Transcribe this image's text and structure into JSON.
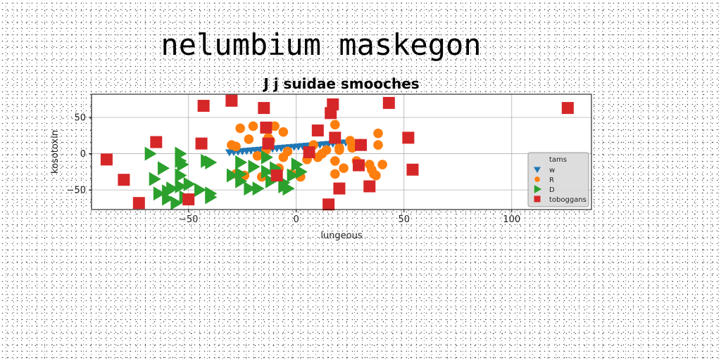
{
  "chart_data": {
    "type": "scatter",
    "suptitle": "nelumbium maskegon",
    "title": "J j suidae smooches",
    "xlabel": "lungeous",
    "ylabel": "kosotoxin",
    "xlim": [
      -95,
      137
    ],
    "ylim": [
      -77,
      82
    ],
    "xticks": [
      -50,
      0,
      50,
      100
    ],
    "yticks": [
      -50,
      0,
      50
    ],
    "grid": true,
    "legend": {
      "title": "tams",
      "placement": "lower-right"
    },
    "colors": {
      "w": "#1f77b4",
      "R": "#ff7f0e",
      "D": "#2ca02c",
      "toboggans": "#d62728"
    },
    "series": [
      {
        "name": "w",
        "marker": "triangle-down",
        "color": "#1f77b4",
        "x": [
          -31,
          -29,
          -27,
          -25,
          -23,
          -21,
          -19,
          -17,
          -15,
          -13,
          -11,
          -9,
          -7,
          -5,
          -3,
          -1,
          1,
          3,
          5,
          7,
          9,
          11,
          13,
          15,
          17,
          19,
          21,
          23
        ],
        "y": [
          2,
          2.5,
          3,
          3.5,
          4,
          4.5,
          5,
          5.5,
          6,
          6.5,
          7,
          7.5,
          8,
          8.5,
          9,
          9.5,
          10,
          10.5,
          11,
          11.5,
          12,
          12.5,
          13,
          13.5,
          14,
          14.5,
          15,
          15.5
        ]
      },
      {
        "name": "R",
        "marker": "circle",
        "color": "#ff7f0e",
        "x": [
          -26,
          -20,
          -22,
          -12,
          -10,
          -6,
          -6,
          -30,
          -28,
          -14,
          -9,
          -18,
          -4,
          8,
          10,
          12,
          18,
          20,
          22,
          25,
          26,
          28,
          30,
          35,
          37,
          38,
          38,
          40,
          36,
          34,
          18,
          16,
          -2,
          2,
          5,
          -13,
          20,
          -28,
          -24,
          -16,
          -8,
          14,
          18,
          26
        ],
        "y": [
          35,
          38,
          20,
          18,
          38,
          30,
          -5,
          12,
          10,
          5,
          -28,
          -3,
          3,
          12,
          -5,
          0,
          40,
          8,
          -20,
          18,
          8,
          -10,
          14,
          -22,
          -30,
          28,
          12,
          -15,
          -28,
          -15,
          -28,
          60,
          -28,
          -32,
          -8,
          22,
          5,
          -28,
          -30,
          -32,
          -20,
          5,
          -10,
          10
        ]
      },
      {
        "name": "D",
        "marker": "triangle-right",
        "color": "#2ca02c",
        "x": [
          -68,
          -54,
          -54,
          -54,
          -66,
          -53,
          -58,
          -45,
          -40,
          -40,
          -26,
          -26,
          -30,
          -14,
          -10,
          -22,
          -6,
          -4,
          0,
          -64,
          -60,
          -56,
          -52,
          -60,
          -54,
          -50,
          -40,
          -26,
          -18,
          -12,
          -6,
          -4,
          -2,
          2,
          -42,
          -14,
          -20,
          -62
        ],
        "y": [
          0,
          0,
          -10,
          -30,
          -35,
          -15,
          -48,
          -50,
          -55,
          -12,
          -12,
          -28,
          -30,
          -25,
          -20,
          -48,
          -45,
          -48,
          -15,
          -55,
          -62,
          -68,
          -60,
          -52,
          -45,
          -42,
          -60,
          -38,
          -48,
          -38,
          -40,
          -48,
          -30,
          -25,
          -10,
          -5,
          -18,
          -20
        ]
      },
      {
        "name": "toboggans",
        "marker": "square",
        "color": "#d62728",
        "x": [
          -88,
          -80,
          -73,
          -50,
          -65,
          -44,
          -43,
          -30,
          -15,
          -14,
          -13,
          -9,
          6,
          10,
          15,
          16,
          17,
          18,
          20,
          29,
          30,
          34,
          43,
          52,
          54,
          126
        ],
        "y": [
          -8,
          -36,
          -68,
          -63,
          16,
          14,
          66,
          73,
          63,
          36,
          14,
          -30,
          2,
          32,
          -70,
          56,
          68,
          22,
          -48,
          -16,
          12,
          -45,
          70,
          22,
          -22,
          63
        ]
      }
    ]
  }
}
